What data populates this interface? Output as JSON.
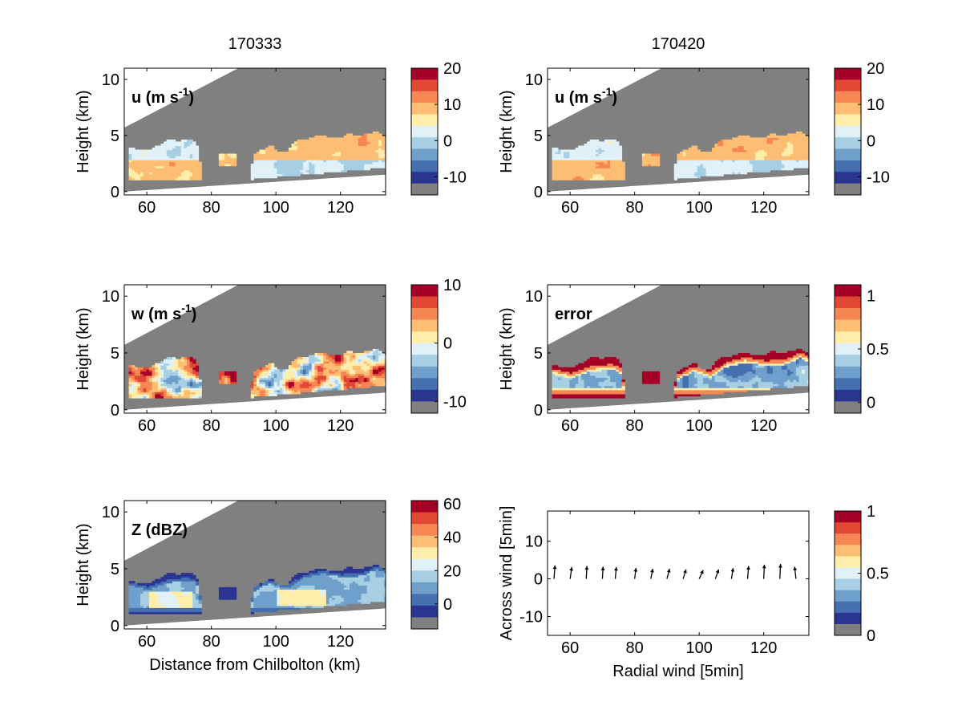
{
  "columns": [
    {
      "title": "170333"
    },
    {
      "title": "170420"
    }
  ],
  "colormap": [
    "#2b3591",
    "#4470b2",
    "#6f9fcb",
    "#a7cfe4",
    "#e0f1f8",
    "#ffedaa",
    "#fdbd72",
    "#f78655",
    "#e14833",
    "#a50026"
  ],
  "missing_color": "#808080",
  "chart_data": [
    {
      "type": "heatmap",
      "panel": "u-170333",
      "label": "u (m s",
      "label_sup": "-1",
      "label_close": ")",
      "ylabel": "Height (km)",
      "xlabel": "",
      "xlim": [
        53,
        134
      ],
      "ylim": [
        -0.3,
        11
      ],
      "xticks": [
        60,
        80,
        100,
        120
      ],
      "yticks": [
        0,
        5,
        10
      ],
      "colorbar": {
        "ticks": [
          20,
          10,
          0,
          -10
        ],
        "range": [
          -15,
          20
        ]
      },
      "variant": "u"
    },
    {
      "type": "heatmap",
      "panel": "u-170420",
      "label": "u (m s",
      "label_sup": "-1",
      "label_close": ")",
      "ylabel": "Height (km)",
      "xlabel": "",
      "xlim": [
        53,
        134
      ],
      "ylim": [
        -0.3,
        11
      ],
      "xticks": [
        60,
        80,
        100,
        120
      ],
      "yticks": [
        0,
        5,
        10
      ],
      "colorbar": {
        "ticks": [
          20,
          10,
          0,
          -10
        ],
        "range": [
          -15,
          20
        ]
      },
      "variant": "u"
    },
    {
      "type": "heatmap",
      "panel": "w-170333",
      "label": "w (m s",
      "label_sup": "-1",
      "label_close": ")",
      "ylabel": "Height (km)",
      "xlabel": "",
      "xlim": [
        53,
        134
      ],
      "ylim": [
        -0.3,
        11
      ],
      "xticks": [
        60,
        80,
        100,
        120
      ],
      "yticks": [
        0,
        5,
        10
      ],
      "colorbar": {
        "ticks": [
          10,
          0,
          -10
        ],
        "range": [
          -12,
          10
        ]
      },
      "variant": "w"
    },
    {
      "type": "heatmap",
      "panel": "error-170420",
      "label": "error",
      "label_sup": "",
      "label_close": "",
      "ylabel": "Height (km)",
      "xlabel": "",
      "xlim": [
        53,
        134
      ],
      "ylim": [
        -0.3,
        11
      ],
      "xticks": [
        60,
        80,
        100,
        120
      ],
      "yticks": [
        0,
        5,
        10
      ],
      "colorbar": {
        "ticks": [
          1,
          0.5,
          0
        ],
        "range": [
          -0.1,
          1.1
        ]
      },
      "variant": "error"
    },
    {
      "type": "heatmap",
      "panel": "Z-170333",
      "label": "Z (dBZ)",
      "label_sup": "",
      "label_close": "",
      "ylabel": "Height (km)",
      "xlabel": "Distance from Chilbolton (km)",
      "xlim": [
        53,
        134
      ],
      "ylim": [
        -0.3,
        11
      ],
      "xticks": [
        60,
        80,
        100,
        120
      ],
      "yticks": [
        0,
        5,
        10
      ],
      "colorbar": {
        "ticks": [
          60,
          40,
          20,
          0
        ],
        "range": [
          -15,
          62
        ]
      },
      "variant": "Z"
    },
    {
      "type": "scatter",
      "panel": "wind-170420",
      "label": "",
      "ylabel": "Across wind [5min]",
      "xlabel": "Radial wind [5min]",
      "xlim": [
        53,
        134
      ],
      "ylim": [
        -15,
        18
      ],
      "xticks": [
        60,
        80,
        100,
        120
      ],
      "yticks": [
        10,
        0,
        -10
      ],
      "colorbar": {
        "ticks": [
          1,
          0.5,
          0
        ],
        "range": [
          0,
          1
        ]
      },
      "x": [
        55,
        60,
        65,
        70,
        74,
        80,
        85,
        90,
        95,
        100,
        105,
        110,
        115,
        120,
        125,
        130
      ],
      "y": [
        0,
        0,
        0,
        0,
        0,
        0,
        0,
        0,
        0,
        0,
        0,
        0,
        0,
        0,
        0,
        0
      ],
      "u": [
        0.3,
        0.5,
        0.2,
        0.2,
        0.3,
        0.4,
        0.6,
        0.8,
        0.9,
        1.2,
        1.0,
        0.5,
        0.3,
        0.2,
        0.2,
        -0.4
      ],
      "v": [
        4.0,
        3.5,
        3.8,
        3.6,
        3.5,
        3.2,
        3.0,
        3.0,
        2.8,
        2.6,
        2.8,
        3.2,
        3.8,
        4.2,
        4.4,
        3.6
      ]
    }
  ]
}
